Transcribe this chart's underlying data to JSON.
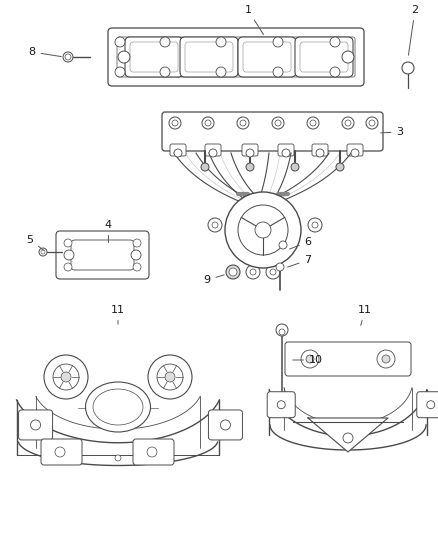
{
  "bg_color": "#ffffff",
  "line_color": "#4a4a4a",
  "label_color": "#1a1a1a",
  "fig_width": 4.38,
  "fig_height": 5.33,
  "dpi": 100
}
